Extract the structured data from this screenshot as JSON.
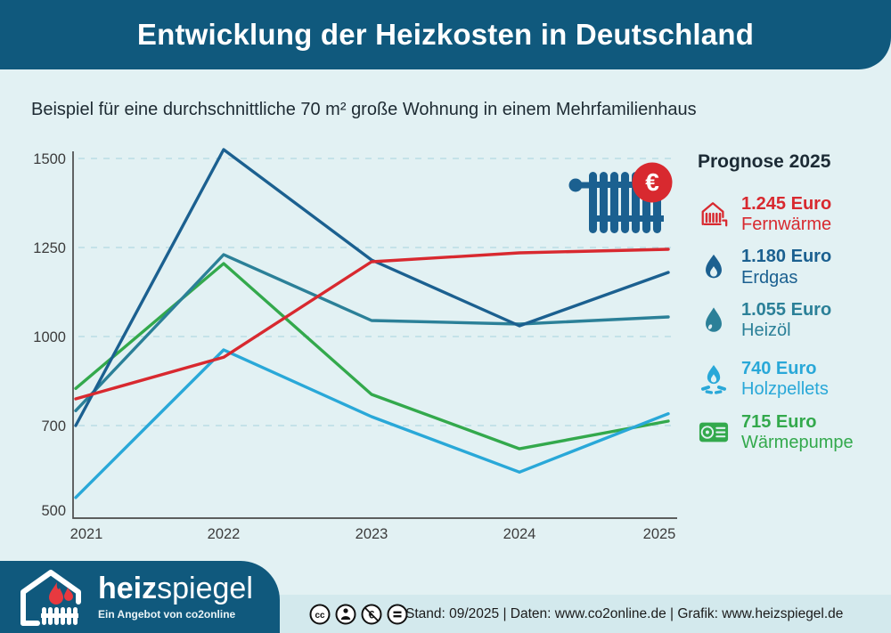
{
  "title": "Entwicklung der Heizkosten in Deutschland",
  "subtitle": "Beispiel für eine durchschnittliche 70 m² große Wohnung in einem Mehrfamilienhaus",
  "chart_data": {
    "type": "line",
    "title": "Entwicklung der Heizkosten in Deutschland",
    "unit": "Euro",
    "x": [
      2021,
      2022,
      2023,
      2024,
      2025
    ],
    "x_tick_labels": [
      "2021",
      "2022",
      "2023",
      "2024",
      "2025"
    ],
    "y_ticks": [
      500,
      700,
      1000,
      1250,
      1500
    ],
    "y_gridlines": [
      700,
      1000,
      1250,
      1500
    ],
    "ylim": [
      500,
      1550
    ],
    "grid": "horizontal-dashed",
    "legend_position": "right",
    "series": [
      {
        "name": "Fernwärme",
        "color": "#d8292f",
        "values": [
          790,
          930,
          1210,
          1235,
          1245
        ]
      },
      {
        "name": "Erdgas",
        "color": "#1b6090",
        "values": [
          700,
          1525,
          1215,
          1030,
          1180
        ]
      },
      {
        "name": "Heizöl",
        "color": "#2b8098",
        "values": [
          750,
          1230,
          1045,
          1035,
          1055
        ]
      },
      {
        "name": "Holzpellets",
        "color": "#29a8d8",
        "values": [
          530,
          955,
          730,
          590,
          740
        ]
      },
      {
        "name": "Wärmepumpe",
        "color": "#33a94c",
        "values": [
          825,
          1205,
          805,
          645,
          715
        ]
      }
    ]
  },
  "hero": {
    "icon": "radiator",
    "badge": "€",
    "badge_color": "#d8292f"
  },
  "legend": {
    "title": "Prognose 2025",
    "entries": [
      {
        "value": "1.245 Euro",
        "name": "Fernwärme",
        "color": "#d8292f",
        "icon": "district-heating"
      },
      {
        "value": "1.180 Euro",
        "name": "Erdgas",
        "color": "#1b6090",
        "icon": "gas-flame"
      },
      {
        "value": "1.055 Euro",
        "name": "Heizöl",
        "color": "#2b8098",
        "icon": "oil-droplet"
      },
      {
        "value": "740 Euro",
        "name": "Holzpellets",
        "color": "#29a8d8",
        "icon": "pellet-fire",
        "gap_above": true
      },
      {
        "value": "715 Euro",
        "name": "Wärmepumpe",
        "color": "#33a94c",
        "icon": "heat-pump"
      }
    ]
  },
  "footer": {
    "logo": {
      "bold": "heiz",
      "light": "spiegel",
      "tagline": "Ein Angebot von co2online"
    },
    "license_icons": [
      "cc",
      "by",
      "nc-euro",
      "nd"
    ],
    "info": "Stand: 09/2025  |  Daten: www.co2online.de  |  Grafik: www.heizspiegel.de"
  },
  "colors": {
    "header_bg": "#10597d",
    "page_bg": "#e2f1f3",
    "footer_strip_bg": "#d3e9ed",
    "gridline": "#b9dde4",
    "axis": "#4a4a4a"
  }
}
